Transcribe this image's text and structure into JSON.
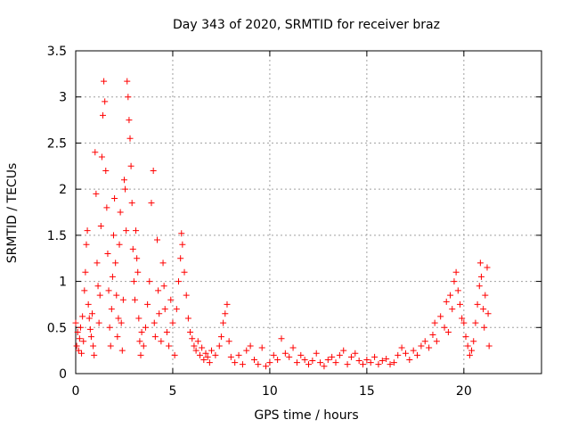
{
  "chart_data": {
    "type": "scatter",
    "title": "Day 343 of 2020, SRMTID for receiver braz",
    "xlabel": "GPS time / hours",
    "ylabel": "SRMTID / TECUs",
    "xlim": [
      0,
      24
    ],
    "ylim": [
      0,
      3.5
    ],
    "x_ticks": [
      0,
      5,
      10,
      15,
      20
    ],
    "y_ticks": [
      0,
      0.5,
      1,
      1.5,
      2,
      2.5,
      3,
      3.5
    ],
    "grid": true,
    "marker": "+",
    "colors": {
      "series": "#ff0000",
      "axis": "#000000",
      "grid": "#a0a0a0"
    },
    "series": [
      {
        "name": "SRMTID",
        "points": [
          [
            0.0,
            0.55
          ],
          [
            0.05,
            0.3
          ],
          [
            0.1,
            0.45
          ],
          [
            0.15,
            0.25
          ],
          [
            0.2,
            0.38
          ],
          [
            0.25,
            0.5
          ],
          [
            0.3,
            0.22
          ],
          [
            0.35,
            0.62
          ],
          [
            0.4,
            0.35
          ],
          [
            0.45,
            0.9
          ],
          [
            0.5,
            1.1
          ],
          [
            0.55,
            1.4
          ],
          [
            0.6,
            1.55
          ],
          [
            0.65,
            0.75
          ],
          [
            0.7,
            0.6
          ],
          [
            0.75,
            0.48
          ],
          [
            0.8,
            0.4
          ],
          [
            0.85,
            0.65
          ],
          [
            0.9,
            0.3
          ],
          [
            0.95,
            0.2
          ],
          [
            1.0,
            2.4
          ],
          [
            1.05,
            1.95
          ],
          [
            1.1,
            1.2
          ],
          [
            1.15,
            0.95
          ],
          [
            1.2,
            0.55
          ],
          [
            1.25,
            0.85
          ],
          [
            1.3,
            1.6
          ],
          [
            1.35,
            2.35
          ],
          [
            1.4,
            2.8
          ],
          [
            1.45,
            3.17
          ],
          [
            1.5,
            2.95
          ],
          [
            1.55,
            2.2
          ],
          [
            1.6,
            1.8
          ],
          [
            1.65,
            1.3
          ],
          [
            1.7,
            0.9
          ],
          [
            1.75,
            0.5
          ],
          [
            1.8,
            0.3
          ],
          [
            1.85,
            0.7
          ],
          [
            1.9,
            1.05
          ],
          [
            1.95,
            1.5
          ],
          [
            2.0,
            1.9
          ],
          [
            2.05,
            1.2
          ],
          [
            2.1,
            0.85
          ],
          [
            2.15,
            0.4
          ],
          [
            2.2,
            0.6
          ],
          [
            2.25,
            1.4
          ],
          [
            2.3,
            1.75
          ],
          [
            2.35,
            0.55
          ],
          [
            2.4,
            0.25
          ],
          [
            2.45,
            0.8
          ],
          [
            2.5,
            2.1
          ],
          [
            2.55,
            2.0
          ],
          [
            2.6,
            1.55
          ],
          [
            2.65,
            3.17
          ],
          [
            2.7,
            3.0
          ],
          [
            2.75,
            2.75
          ],
          [
            2.8,
            2.55
          ],
          [
            2.85,
            2.25
          ],
          [
            2.9,
            1.85
          ],
          [
            2.95,
            1.35
          ],
          [
            3.0,
            1.0
          ],
          [
            3.05,
            0.8
          ],
          [
            3.1,
            1.55
          ],
          [
            3.15,
            1.25
          ],
          [
            3.2,
            1.1
          ],
          [
            3.25,
            0.6
          ],
          [
            3.3,
            0.35
          ],
          [
            3.35,
            0.2
          ],
          [
            3.4,
            0.45
          ],
          [
            3.5,
            0.3
          ],
          [
            3.6,
            0.5
          ],
          [
            3.7,
            0.75
          ],
          [
            3.8,
            1.0
          ],
          [
            3.9,
            1.85
          ],
          [
            4.0,
            2.2
          ],
          [
            4.05,
            0.55
          ],
          [
            4.1,
            0.4
          ],
          [
            4.2,
            1.45
          ],
          [
            4.25,
            0.9
          ],
          [
            4.3,
            0.65
          ],
          [
            4.4,
            0.35
          ],
          [
            4.5,
            1.2
          ],
          [
            4.55,
            0.95
          ],
          [
            4.6,
            0.7
          ],
          [
            4.7,
            0.45
          ],
          [
            4.8,
            0.3
          ],
          [
            4.9,
            0.8
          ],
          [
            5.0,
            0.55
          ],
          [
            5.1,
            0.2
          ],
          [
            5.2,
            0.7
          ],
          [
            5.3,
            1.0
          ],
          [
            5.4,
            1.25
          ],
          [
            5.45,
            1.52
          ],
          [
            5.5,
            1.4
          ],
          [
            5.6,
            1.1
          ],
          [
            5.7,
            0.85
          ],
          [
            5.8,
            0.6
          ],
          [
            5.9,
            0.45
          ],
          [
            6.0,
            0.38
          ],
          [
            6.1,
            0.3
          ],
          [
            6.2,
            0.25
          ],
          [
            6.3,
            0.35
          ],
          [
            6.4,
            0.2
          ],
          [
            6.5,
            0.28
          ],
          [
            6.6,
            0.15
          ],
          [
            6.7,
            0.22
          ],
          [
            6.8,
            0.18
          ],
          [
            6.9,
            0.12
          ],
          [
            7.0,
            0.25
          ],
          [
            7.2,
            0.2
          ],
          [
            7.4,
            0.3
          ],
          [
            7.5,
            0.4
          ],
          [
            7.6,
            0.55
          ],
          [
            7.7,
            0.65
          ],
          [
            7.8,
            0.75
          ],
          [
            7.9,
            0.35
          ],
          [
            8.0,
            0.18
          ],
          [
            8.2,
            0.12
          ],
          [
            8.4,
            0.2
          ],
          [
            8.6,
            0.1
          ],
          [
            8.8,
            0.25
          ],
          [
            9.0,
            0.3
          ],
          [
            9.2,
            0.15
          ],
          [
            9.4,
            0.1
          ],
          [
            9.6,
            0.28
          ],
          [
            9.8,
            0.08
          ],
          [
            10.0,
            0.12
          ],
          [
            10.2,
            0.2
          ],
          [
            10.4,
            0.15
          ],
          [
            10.6,
            0.38
          ],
          [
            10.8,
            0.22
          ],
          [
            11.0,
            0.18
          ],
          [
            11.2,
            0.28
          ],
          [
            11.4,
            0.12
          ],
          [
            11.6,
            0.2
          ],
          [
            11.8,
            0.15
          ],
          [
            12.0,
            0.1
          ],
          [
            12.2,
            0.14
          ],
          [
            12.4,
            0.22
          ],
          [
            12.6,
            0.12
          ],
          [
            12.8,
            0.08
          ],
          [
            13.0,
            0.15
          ],
          [
            13.2,
            0.18
          ],
          [
            13.4,
            0.12
          ],
          [
            13.6,
            0.2
          ],
          [
            13.8,
            0.25
          ],
          [
            14.0,
            0.1
          ],
          [
            14.2,
            0.18
          ],
          [
            14.4,
            0.22
          ],
          [
            14.6,
            0.14
          ],
          [
            14.8,
            0.1
          ],
          [
            15.0,
            0.15
          ],
          [
            15.2,
            0.12
          ],
          [
            15.4,
            0.18
          ],
          [
            15.6,
            0.1
          ],
          [
            15.8,
            0.14
          ],
          [
            16.0,
            0.16
          ],
          [
            16.2,
            0.1
          ],
          [
            16.4,
            0.12
          ],
          [
            16.6,
            0.2
          ],
          [
            16.8,
            0.28
          ],
          [
            17.0,
            0.22
          ],
          [
            17.2,
            0.15
          ],
          [
            17.4,
            0.25
          ],
          [
            17.6,
            0.2
          ],
          [
            17.8,
            0.3
          ],
          [
            18.0,
            0.35
          ],
          [
            18.2,
            0.28
          ],
          [
            18.4,
            0.42
          ],
          [
            18.5,
            0.55
          ],
          [
            18.6,
            0.35
          ],
          [
            18.8,
            0.62
          ],
          [
            19.0,
            0.5
          ],
          [
            19.1,
            0.78
          ],
          [
            19.2,
            0.45
          ],
          [
            19.3,
            0.85
          ],
          [
            19.4,
            0.7
          ],
          [
            19.5,
            1.0
          ],
          [
            19.6,
            1.1
          ],
          [
            19.7,
            0.9
          ],
          [
            19.8,
            0.75
          ],
          [
            19.9,
            0.6
          ],
          [
            20.0,
            0.55
          ],
          [
            20.1,
            0.4
          ],
          [
            20.2,
            0.3
          ],
          [
            20.3,
            0.2
          ],
          [
            20.4,
            0.25
          ],
          [
            20.5,
            0.35
          ],
          [
            20.6,
            0.55
          ],
          [
            20.7,
            0.75
          ],
          [
            20.8,
            0.95
          ],
          [
            20.85,
            1.2
          ],
          [
            20.9,
            1.05
          ],
          [
            21.0,
            0.7
          ],
          [
            21.05,
            0.5
          ],
          [
            21.1,
            0.85
          ],
          [
            21.2,
            1.15
          ],
          [
            21.25,
            0.65
          ],
          [
            21.3,
            0.3
          ]
        ]
      }
    ]
  }
}
